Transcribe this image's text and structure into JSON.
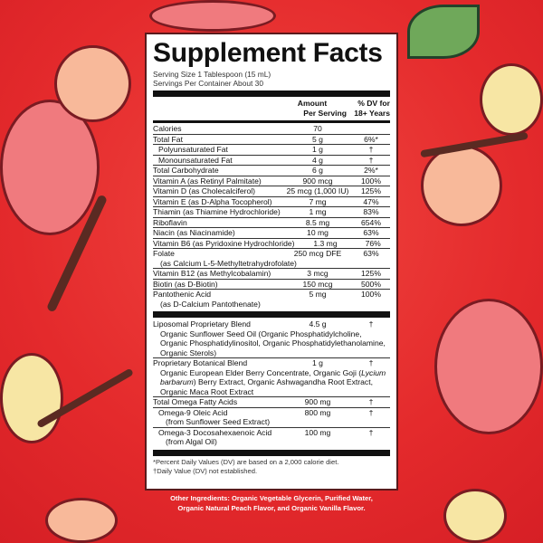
{
  "title": "Supplement Facts",
  "serving_size": "Serving Size 1 Tablespoon (15 mL)",
  "servings_per_container": "Servings Per Container About 30",
  "header": {
    "amount_1": "Amount",
    "amount_2": "Per Serving",
    "dv_1": "% DV for",
    "dv_2": "18+ Years"
  },
  "rows_1": [
    {
      "name": "Calories",
      "amount": "70",
      "dv": ""
    },
    {
      "name": "Total Fat",
      "amount": "5 g",
      "dv": "6%*"
    },
    {
      "name": "Polyunsaturated Fat",
      "amount": "1 g",
      "dv": "†",
      "indent": true
    },
    {
      "name": "Monounsaturated Fat",
      "amount": "4 g",
      "dv": "†",
      "indent": true
    },
    {
      "name": "Total Carbohydrate",
      "amount": "6 g",
      "dv": "2%*"
    },
    {
      "name": "Vitamin A (as Retinyl Palmitate)",
      "amount": "900 mcg",
      "dv": "100%"
    },
    {
      "name": "Vitamin D (as Cholecalciferol)",
      "amount": "25 mcg (1,000 IU)",
      "dv": "125%"
    },
    {
      "name": "Vitamin E (as D-Alpha Tocopherol)",
      "amount": "7 mg",
      "dv": "47%"
    },
    {
      "name": "Thiamin (as Thiamine Hydrochloride)",
      "amount": "1 mg",
      "dv": "83%"
    },
    {
      "name": "Riboflavin",
      "amount": "8.5 mg",
      "dv": "654%"
    },
    {
      "name": "Niacin (as Niacinamide)",
      "amount": "10 mg",
      "dv": "63%"
    },
    {
      "name": "Vitamin B6 (as Pyridoxine Hydrochloride)",
      "amount": "1.3 mg",
      "dv": "76%"
    },
    {
      "name": "Folate",
      "amount": "250 mcg DFE",
      "dv": "63%",
      "sub": "(as Calcium L-5-Methyltetrahydrofolate)"
    },
    {
      "name": "Vitamin B12 (as Methylcobalamin)",
      "amount": "3 mcg",
      "dv": "125%"
    },
    {
      "name": "Biotin (as D-Biotin)",
      "amount": "150 mcg",
      "dv": "500%"
    },
    {
      "name": "Pantothenic Acid",
      "amount": "5 mg",
      "dv": "100%",
      "sub": "(as D-Calcium Pantothenate)"
    }
  ],
  "rows_2": [
    {
      "name": "Liposomal Proprietary Blend",
      "amount": "4.5 g",
      "dv": "†",
      "sub": "Organic Sunflower Seed Oil (Organic Phosphatidylcholine, Organic Phosphatidylinositol, Organic Phosphatidylethanolamine, Organic Sterols)"
    },
    {
      "name": "Proprietary Botanical Blend",
      "amount": "1 g",
      "dv": "†",
      "sub_pre": "Organic European Elder Berry Concentrate, Organic Goji (",
      "sub_italic": "Lycium barbarum",
      "sub_post": ") Berry Extract, Organic Ashwagandha Root Extract, Organic Maca Root Extract"
    },
    {
      "name": "Total Omega Fatty Acids",
      "amount": "900 mg",
      "dv": "†"
    },
    {
      "name": "Omega-9 Oleic Acid",
      "amount": "800 mg",
      "dv": "†",
      "indent": true,
      "sub": "(from Sunflower Seed Extract)"
    },
    {
      "name": "Omega-3 Docosahexaenoic Acid",
      "amount": "100 mg",
      "dv": "†",
      "indent": true,
      "sub": "(from Algal Oil)"
    }
  ],
  "footnote_1": "*Percent Daily Values (DV) are based on a 2,000 calorie diet.",
  "footnote_2": "†Daily Value (DV) not established.",
  "other_ingredients_1": "Other Ingredients: Organic Vegetable Glycerin, Purified Water,",
  "other_ingredients_2": "Organic Natural Peach Flavor, and Organic Vanilla Flavor.",
  "colors": {
    "background": "#e42a2c",
    "label": "#ffffff",
    "text": "#111111"
  }
}
